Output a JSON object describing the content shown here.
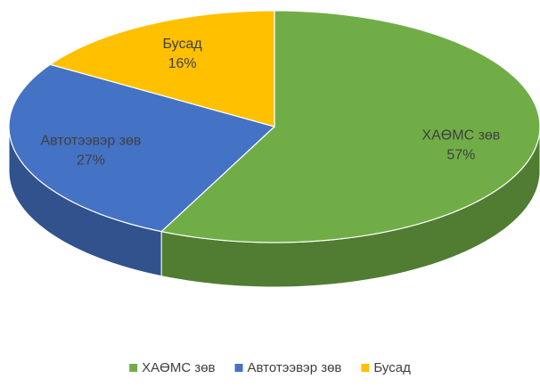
{
  "chart_data": {
    "type": "pie",
    "categories": [
      "ХАӨМС зөв",
      "Автотээвэр зөв",
      "Бусад"
    ],
    "values": [
      57,
      27,
      16
    ],
    "value_labels": [
      "57%",
      "27%",
      "16%"
    ],
    "colors": [
      "#70ad47",
      "#4472c4",
      "#ffc000"
    ],
    "legend": "bottom"
  }
}
